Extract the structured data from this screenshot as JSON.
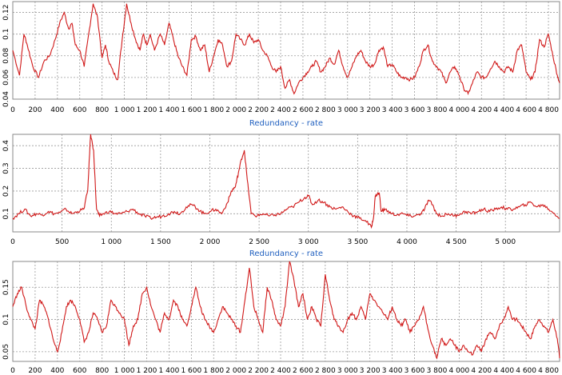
{
  "chart_data": [
    {
      "type": "line",
      "xlabel": "Redundancy - rate",
      "x_ticks": [
        0,
        200,
        400,
        600,
        800,
        1000,
        1200,
        1400,
        1600,
        1800,
        2000,
        2200,
        2400,
        2600,
        2800,
        3000,
        3200,
        3400,
        3600,
        3800,
        4000,
        4200,
        4400,
        4600,
        4800
      ],
      "x_tick_labels": [
        "0",
        "200",
        "400",
        "600",
        "800",
        "1 000",
        "1 200",
        "1 400",
        "1 600",
        "1 800",
        "2 000",
        "2 200",
        "2 400",
        "2 600",
        "2 800",
        "3 000",
        "3 200",
        "3 400",
        "3 600",
        "3 800",
        "4 000",
        "4 200",
        "4 400",
        "4 600",
        "4 800"
      ],
      "xlim": [
        0,
        4900
      ],
      "y_ticks": [
        0.04,
        0.06,
        0.08,
        0.1,
        0.12
      ],
      "y_tick_labels": [
        "0.04",
        "0.06",
        "0.08",
        "0.1",
        "0.12"
      ],
      "ylim": [
        0.04,
        0.13
      ],
      "grid": true,
      "series_color": "#d01818",
      "series": [
        {
          "x": [
            0,
            60,
            100,
            130,
            180,
            230,
            280,
            330,
            380,
            420,
            460,
            500,
            530,
            560,
            600,
            640,
            680,
            720,
            760,
            800,
            830,
            860,
            900,
            940,
            980,
            1020,
            1060,
            1100,
            1140,
            1170,
            1200,
            1230,
            1270,
            1320,
            1360,
            1400,
            1440,
            1480,
            1520,
            1560,
            1600,
            1640,
            1680,
            1720,
            1760,
            1800,
            1840,
            1880,
            1920,
            1960,
            2000,
            2040,
            2080,
            2120,
            2160,
            2200,
            2240,
            2280,
            2320,
            2360,
            2400,
            2440,
            2480,
            2520,
            2560,
            2600,
            2640,
            2680,
            2720,
            2760,
            2800,
            2840,
            2880,
            2920,
            2960,
            3000,
            3040,
            3080,
            3120,
            3160,
            3200,
            3240,
            3280,
            3320,
            3360,
            3400,
            3440,
            3480,
            3520,
            3560,
            3600,
            3640,
            3680,
            3720,
            3760,
            3800,
            3840,
            3880,
            3920,
            3960,
            4000,
            4040,
            4080,
            4120,
            4160,
            4200,
            4240,
            4280,
            4320,
            4360,
            4400,
            4440,
            4480,
            4520,
            4560,
            4600,
            4640,
            4680,
            4720,
            4760,
            4800,
            4840,
            4880,
            4900
          ],
          "y": [
            0.085,
            0.062,
            0.1,
            0.09,
            0.07,
            0.06,
            0.075,
            0.08,
            0.095,
            0.11,
            0.12,
            0.105,
            0.11,
            0.09,
            0.085,
            0.07,
            0.1,
            0.128,
            0.115,
            0.078,
            0.09,
            0.075,
            0.065,
            0.058,
            0.095,
            0.128,
            0.11,
            0.095,
            0.085,
            0.1,
            0.09,
            0.1,
            0.085,
            0.1,
            0.09,
            0.11,
            0.095,
            0.08,
            0.07,
            0.062,
            0.095,
            0.098,
            0.085,
            0.09,
            0.065,
            0.08,
            0.095,
            0.09,
            0.07,
            0.075,
            0.1,
            0.095,
            0.09,
            0.1,
            0.092,
            0.095,
            0.085,
            0.08,
            0.07,
            0.065,
            0.07,
            0.05,
            0.058,
            0.045,
            0.055,
            0.06,
            0.065,
            0.07,
            0.075,
            0.065,
            0.07,
            0.078,
            0.072,
            0.085,
            0.07,
            0.06,
            0.07,
            0.08,
            0.085,
            0.075,
            0.07,
            0.072,
            0.085,
            0.088,
            0.07,
            0.072,
            0.065,
            0.06,
            0.06,
            0.058,
            0.06,
            0.07,
            0.085,
            0.09,
            0.075,
            0.07,
            0.065,
            0.055,
            0.065,
            0.07,
            0.062,
            0.05,
            0.045,
            0.055,
            0.065,
            0.06,
            0.06,
            0.068,
            0.075,
            0.07,
            0.065,
            0.07,
            0.065,
            0.085,
            0.09,
            0.065,
            0.058,
            0.065,
            0.095,
            0.088,
            0.1,
            0.08,
            0.062,
            0.055
          ]
        }
      ]
    },
    {
      "type": "line",
      "xlabel": "Redundancy - rate",
      "x_ticks": [
        0,
        500,
        1000,
        1500,
        2000,
        2500,
        3000,
        3500,
        4000,
        4500,
        5000
      ],
      "x_tick_labels": [
        "0",
        "500",
        "1 000",
        "1 500",
        "2 000",
        "2 500",
        "3 000",
        "3 500",
        "4 000",
        "4 500",
        "5 000"
      ],
      "xlim": [
        0,
        5550
      ],
      "y_ticks": [
        0.1,
        0.2,
        0.3,
        0.4
      ],
      "y_tick_labels": [
        "0.1",
        "0.2",
        "0.3",
        "0.4"
      ],
      "ylim": [
        0.02,
        0.45
      ],
      "grid": true,
      "series_color": "#b01818",
      "series": [
        {
          "x": [
            0,
            60,
            120,
            180,
            240,
            300,
            360,
            420,
            480,
            540,
            600,
            660,
            720,
            760,
            790,
            820,
            850,
            880,
            920,
            980,
            1040,
            1100,
            1160,
            1220,
            1280,
            1340,
            1400,
            1460,
            1520,
            1580,
            1640,
            1700,
            1760,
            1820,
            1880,
            1940,
            2000,
            2060,
            2120,
            2180,
            2220,
            2260,
            2290,
            2320,
            2350,
            2380,
            2420,
            2480,
            2540,
            2600,
            2660,
            2720,
            2780,
            2840,
            2900,
            2960,
            3000,
            3040,
            3100,
            3160,
            3220,
            3280,
            3340,
            3400,
            3460,
            3520,
            3580,
            3640,
            3660,
            3680,
            3700,
            3720,
            3740,
            3780,
            3840,
            3900,
            3960,
            4020,
            4080,
            4140,
            4180,
            4220,
            4260,
            4300,
            4360,
            4420,
            4480,
            4540,
            4600,
            4660,
            4720,
            4780,
            4840,
            4900,
            4960,
            5020,
            5080,
            5140,
            5200,
            5260,
            5320,
            5380,
            5440,
            5500,
            5550
          ],
          "y": [
            0.08,
            0.1,
            0.12,
            0.09,
            0.1,
            0.095,
            0.11,
            0.1,
            0.105,
            0.12,
            0.1,
            0.11,
            0.12,
            0.2,
            0.45,
            0.38,
            0.12,
            0.09,
            0.1,
            0.11,
            0.1,
            0.1,
            0.11,
            0.12,
            0.1,
            0.09,
            0.08,
            0.085,
            0.09,
            0.1,
            0.11,
            0.1,
            0.13,
            0.14,
            0.12,
            0.1,
            0.11,
            0.12,
            0.1,
            0.15,
            0.2,
            0.22,
            0.28,
            0.34,
            0.38,
            0.25,
            0.1,
            0.09,
            0.1,
            0.09,
            0.095,
            0.1,
            0.12,
            0.13,
            0.15,
            0.17,
            0.18,
            0.14,
            0.16,
            0.15,
            0.13,
            0.12,
            0.13,
            0.11,
            0.09,
            0.08,
            0.07,
            0.04,
            0.08,
            0.18,
            0.185,
            0.19,
            0.11,
            0.12,
            0.1,
            0.095,
            0.1,
            0.09,
            0.09,
            0.1,
            0.12,
            0.16,
            0.14,
            0.1,
            0.09,
            0.1,
            0.09,
            0.1,
            0.11,
            0.1,
            0.11,
            0.12,
            0.11,
            0.12,
            0.13,
            0.12,
            0.12,
            0.13,
            0.14,
            0.15,
            0.13,
            0.14,
            0.12,
            0.1,
            0.08
          ]
        }
      ]
    },
    {
      "type": "line",
      "xlabel": "",
      "x_ticks": [
        0,
        200,
        400,
        600,
        800,
        1000,
        1200,
        1400,
        1600,
        1800,
        2000,
        2200,
        2400,
        2600,
        2800,
        3000,
        3200,
        3400,
        3600,
        3800,
        4000,
        4200,
        4400,
        4600,
        4800
      ],
      "x_tick_labels": [
        "0",
        "200",
        "400",
        "600",
        "800",
        "1 000",
        "1 200",
        "1 400",
        "1 600",
        "1 800",
        "2 000",
        "2 200",
        "2 400",
        "2 600",
        "2 800",
        "3 000",
        "3 200",
        "3 400",
        "3 600",
        "3 800",
        "4 000",
        "4 200",
        "4 400",
        "4 600",
        "4 800"
      ],
      "xlim": [
        0,
        4900
      ],
      "y_ticks": [
        0.05,
        0.1,
        0.15
      ],
      "y_tick_labels": [
        "0.05",
        "0.1",
        "0.15"
      ],
      "ylim": [
        0.035,
        0.19
      ],
      "grid": true,
      "series_color": "#c01818",
      "series": [
        {
          "x": [
            0,
            40,
            80,
            120,
            160,
            200,
            240,
            280,
            320,
            360,
            400,
            440,
            480,
            520,
            560,
            600,
            640,
            680,
            720,
            760,
            800,
            840,
            880,
            920,
            960,
            1000,
            1040,
            1080,
            1120,
            1160,
            1200,
            1240,
            1280,
            1320,
            1360,
            1400,
            1440,
            1480,
            1520,
            1560,
            1600,
            1640,
            1680,
            1720,
            1760,
            1800,
            1840,
            1880,
            1920,
            1960,
            2000,
            2040,
            2080,
            2120,
            2160,
            2200,
            2240,
            2280,
            2320,
            2360,
            2400,
            2440,
            2480,
            2520,
            2560,
            2600,
            2640,
            2680,
            2720,
            2760,
            2800,
            2840,
            2880,
            2920,
            2960,
            3000,
            3040,
            3080,
            3120,
            3160,
            3200,
            3240,
            3280,
            3320,
            3360,
            3400,
            3440,
            3480,
            3520,
            3560,
            3600,
            3640,
            3680,
            3720,
            3760,
            3800,
            3840,
            3880,
            3920,
            3960,
            4000,
            4040,
            4080,
            4120,
            4160,
            4200,
            4240,
            4280,
            4320,
            4360,
            4400,
            4440,
            4480,
            4520,
            4560,
            4600,
            4640,
            4680,
            4720,
            4760,
            4800,
            4840,
            4880,
            4900
          ],
          "y": [
            0.12,
            0.14,
            0.15,
            0.12,
            0.1,
            0.085,
            0.13,
            0.12,
            0.1,
            0.07,
            0.05,
            0.08,
            0.12,
            0.13,
            0.12,
            0.1,
            0.065,
            0.08,
            0.11,
            0.1,
            0.08,
            0.09,
            0.13,
            0.12,
            0.11,
            0.1,
            0.06,
            0.09,
            0.1,
            0.14,
            0.15,
            0.12,
            0.1,
            0.08,
            0.11,
            0.1,
            0.13,
            0.12,
            0.1,
            0.09,
            0.12,
            0.15,
            0.12,
            0.1,
            0.09,
            0.08,
            0.1,
            0.12,
            0.11,
            0.1,
            0.09,
            0.08,
            0.13,
            0.18,
            0.12,
            0.1,
            0.08,
            0.15,
            0.13,
            0.1,
            0.09,
            0.12,
            0.19,
            0.16,
            0.12,
            0.14,
            0.1,
            0.12,
            0.1,
            0.09,
            0.17,
            0.13,
            0.1,
            0.09,
            0.08,
            0.1,
            0.11,
            0.1,
            0.12,
            0.1,
            0.14,
            0.13,
            0.12,
            0.11,
            0.1,
            0.12,
            0.1,
            0.09,
            0.1,
            0.08,
            0.09,
            0.1,
            0.12,
            0.085,
            0.06,
            0.04,
            0.07,
            0.06,
            0.07,
            0.06,
            0.05,
            0.06,
            0.05,
            0.045,
            0.06,
            0.05,
            0.07,
            0.08,
            0.07,
            0.09,
            0.1,
            0.12,
            0.1,
            0.1,
            0.09,
            0.08,
            0.07,
            0.09,
            0.1,
            0.09,
            0.08,
            0.1,
            0.07,
            0.04
          ]
        }
      ]
    }
  ]
}
